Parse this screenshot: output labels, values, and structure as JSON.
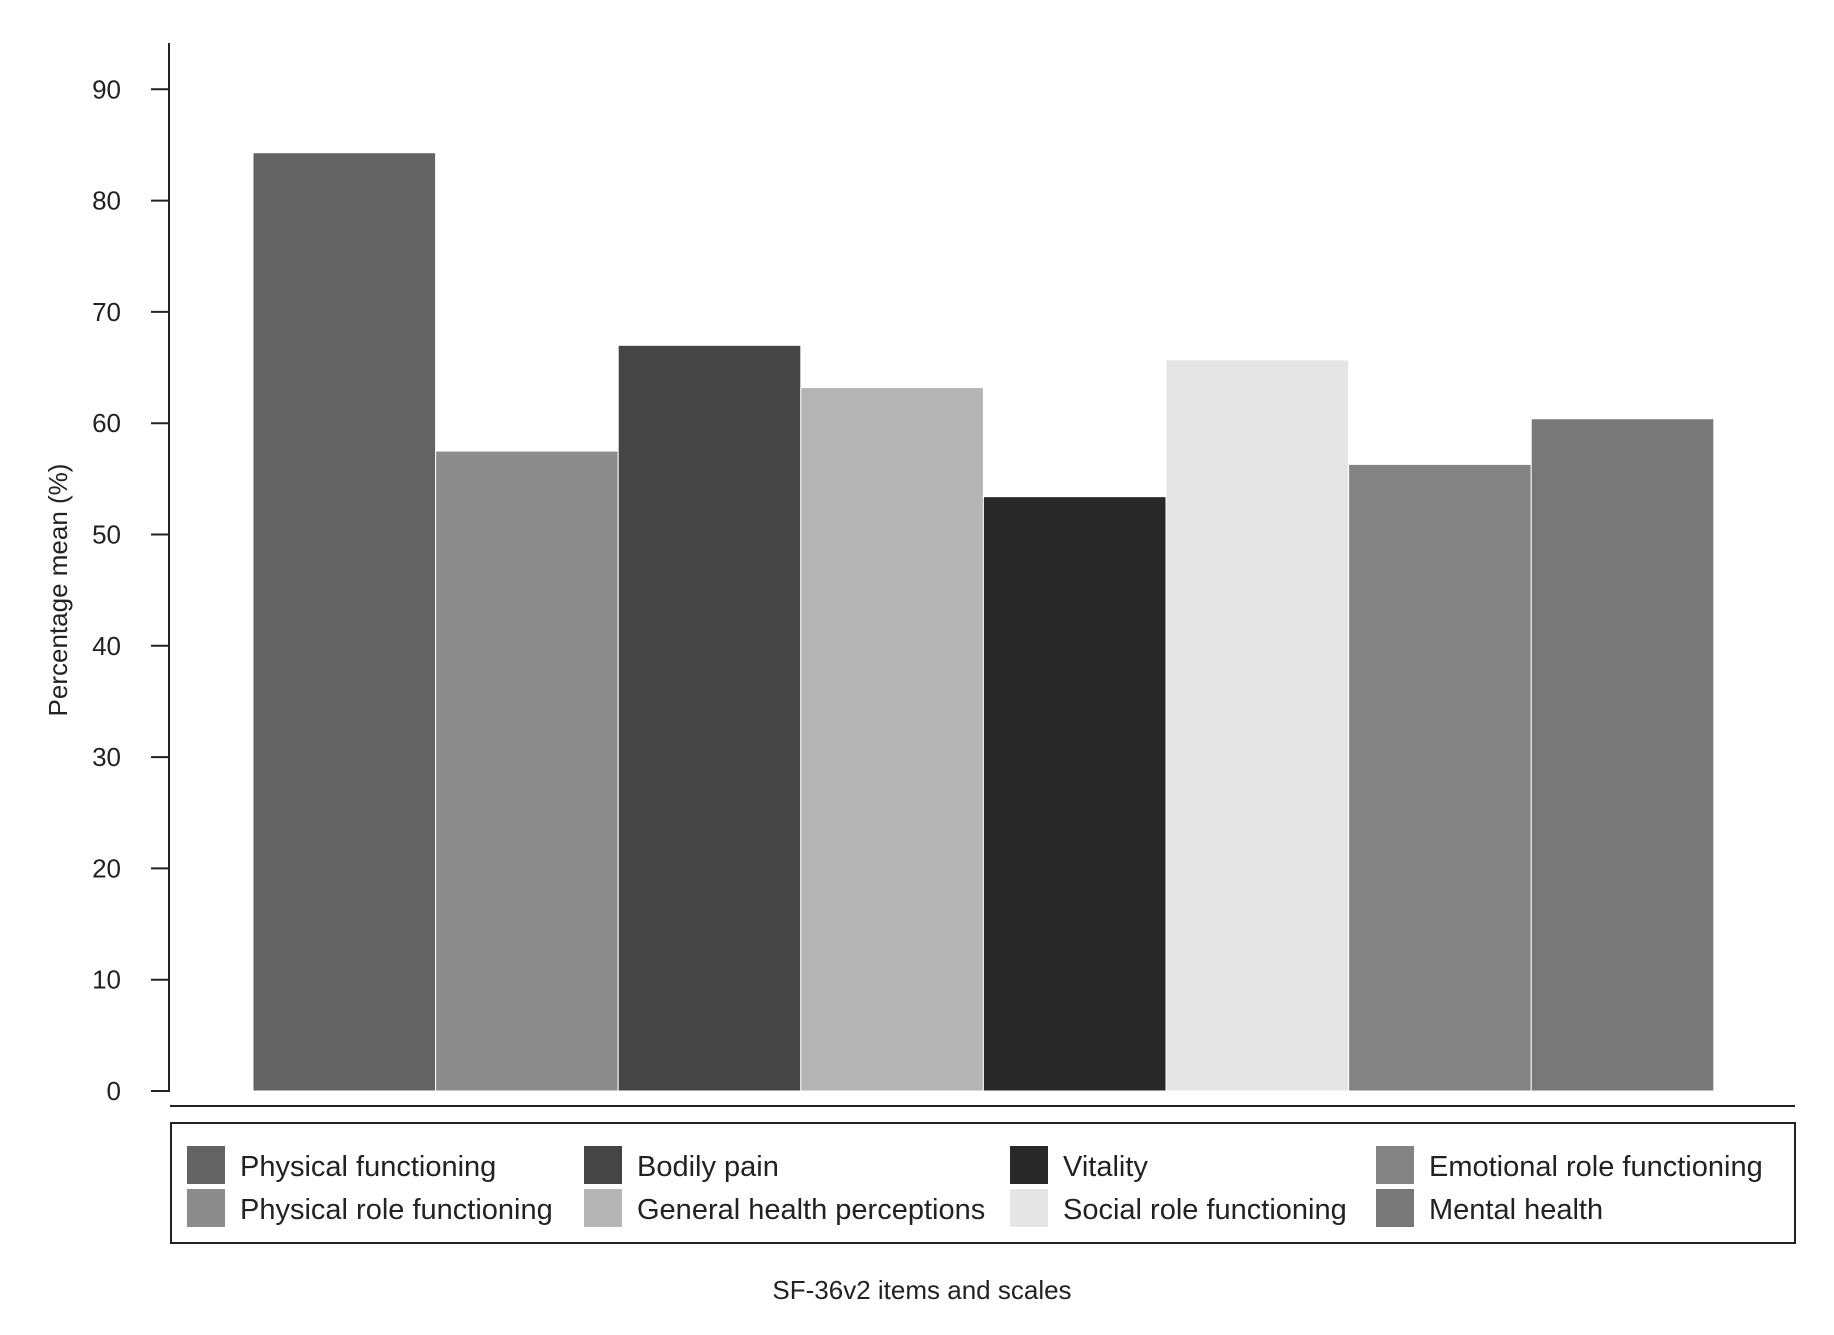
{
  "chart_data": {
    "type": "bar",
    "title": "",
    "xlabel": "SF-36v2 items and scales",
    "ylabel": "Percentage mean (%)",
    "ylim": [
      0,
      95
    ],
    "yticks": [
      0,
      10,
      20,
      30,
      40,
      50,
      60,
      70,
      80,
      90
    ],
    "grid": false,
    "legend_position": "bottom",
    "categories": [
      "Physical functioning",
      "Physical role functioning",
      "Bodily pain",
      "General health perceptions",
      "Vitality",
      "Social role functioning",
      "Emotional role functioning",
      "Mental health"
    ],
    "values": [
      84.3,
      57.5,
      67.0,
      63.2,
      53.4,
      65.7,
      56.3,
      60.4
    ],
    "colors": [
      "#636363",
      "#8c8c8c",
      "#454545",
      "#b5b5b5",
      "#282828",
      "#e5e5e5",
      "#838383",
      "#787878"
    ],
    "legend_order": [
      "Physical functioning",
      "Bodily pain",
      "Vitality",
      "Emotional role functioning",
      "Physical role functioning",
      "General health perceptions",
      "Social role functioning",
      "Mental health"
    ]
  }
}
